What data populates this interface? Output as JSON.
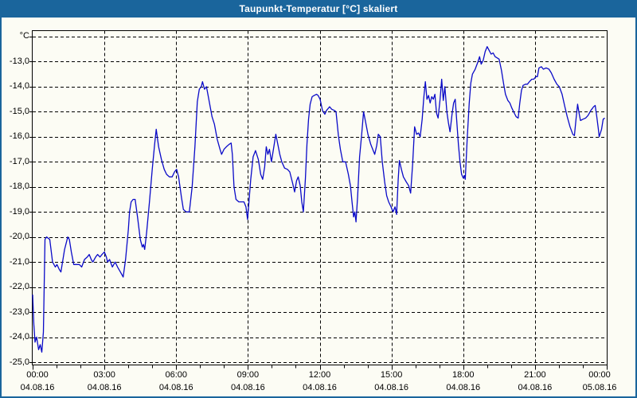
{
  "window": {
    "title": "Taupunkt-Temperatur [°C] skaliert"
  },
  "colors": {
    "titlebar_bg": "#1a659c",
    "titlebar_text": "#ffffff",
    "frame": "#1a659c",
    "background": "#fcfcf4",
    "grid": "#000000",
    "axis_text": "#000000",
    "line": "#0a0ac8"
  },
  "chart_data": {
    "type": "line",
    "title": "Taupunkt-Temperatur [°C] skaliert",
    "grid": true,
    "legend": false,
    "ylabel": "°C",
    "ylim": [
      -25,
      -12
    ],
    "y_axis": {
      "unit_label": "°C",
      "tick_step": 1,
      "tick_labels": [
        "-13,0",
        "-14,0",
        "-15,0",
        "-16,0",
        "-17,0",
        "-18,0",
        "-19,0",
        "-20,0",
        "-21,0",
        "-22,0",
        "-23,0",
        "-24,0",
        "-25,0"
      ],
      "tick_values": [
        -13,
        -14,
        -15,
        -16,
        -17,
        -18,
        -19,
        -20,
        -21,
        -22,
        -23,
        -24,
        -25
      ]
    },
    "x_axis": {
      "unit": "time",
      "minor_tick_hours": 1,
      "major_ticks": [
        {
          "hour": 0,
          "time": "00:00",
          "date": "04.08.16"
        },
        {
          "hour": 3,
          "time": "03:00",
          "date": "04.08.16"
        },
        {
          "hour": 6,
          "time": "06:00",
          "date": "04.08.16"
        },
        {
          "hour": 9,
          "time": "09:00",
          "date": "04.08.16"
        },
        {
          "hour": 12,
          "time": "12:00",
          "date": "04.08.16"
        },
        {
          "hour": 15,
          "time": "15:00",
          "date": "04.08.16"
        },
        {
          "hour": 18,
          "time": "18:00",
          "date": "04.08.16"
        },
        {
          "hour": 21,
          "time": "21:00",
          "date": "04.08.16"
        },
        {
          "hour": 24,
          "time": "00:00",
          "date": "05.08.16"
        }
      ]
    },
    "series": [
      {
        "name": "Taupunkt-Temperatur",
        "color": "#0a0ac8",
        "points_min_degC": [
          [
            0,
            -22.3
          ],
          [
            3,
            -23.5
          ],
          [
            6,
            -24.2
          ],
          [
            10,
            -24.0
          ],
          [
            15,
            -24.5
          ],
          [
            19,
            -24.3
          ],
          [
            23,
            -24.6
          ],
          [
            27,
            -23.8
          ],
          [
            31,
            -20.1
          ],
          [
            35,
            -20.0
          ],
          [
            43,
            -20.1
          ],
          [
            50,
            -21.0
          ],
          [
            57,
            -21.2
          ],
          [
            61,
            -21.1
          ],
          [
            67,
            -21.3
          ],
          [
            71,
            -21.4
          ],
          [
            80,
            -20.5
          ],
          [
            88,
            -20.0
          ],
          [
            92,
            -20.1
          ],
          [
            97,
            -20.6
          ],
          [
            103,
            -21.1
          ],
          [
            110,
            -21.1
          ],
          [
            117,
            -21.1
          ],
          [
            123,
            -21.2
          ],
          [
            130,
            -20.9
          ],
          [
            137,
            -20.8
          ],
          [
            142,
            -20.7
          ],
          [
            147,
            -20.9
          ],
          [
            151,
            -21.0
          ],
          [
            158,
            -20.8
          ],
          [
            163,
            -20.7
          ],
          [
            169,
            -20.8
          ],
          [
            174,
            -20.7
          ],
          [
            180,
            -20.6
          ],
          [
            185,
            -20.8
          ],
          [
            188,
            -21.0
          ],
          [
            193,
            -20.9
          ],
          [
            200,
            -21.2
          ],
          [
            207,
            -21.0
          ],
          [
            213,
            -21.2
          ],
          [
            220,
            -21.4
          ],
          [
            227,
            -21.6
          ],
          [
            233,
            -20.9
          ],
          [
            240,
            -19.7
          ],
          [
            243,
            -19.0
          ],
          [
            247,
            -18.6
          ],
          [
            252,
            -18.5
          ],
          [
            257,
            -18.5
          ],
          [
            263,
            -19.2
          ],
          [
            270,
            -20.1
          ],
          [
            275,
            -20.4
          ],
          [
            278,
            -20.3
          ],
          [
            281,
            -20.5
          ],
          [
            286,
            -19.8
          ],
          [
            293,
            -18.6
          ],
          [
            300,
            -17.3
          ],
          [
            306,
            -16.3
          ],
          [
            310,
            -15.7
          ],
          [
            316,
            -16.4
          ],
          [
            323,
            -16.9
          ],
          [
            330,
            -17.3
          ],
          [
            336,
            -17.5
          ],
          [
            343,
            -17.6
          ],
          [
            350,
            -17.6
          ],
          [
            356,
            -17.4
          ],
          [
            361,
            -17.3
          ],
          [
            366,
            -17.6
          ],
          [
            373,
            -18.4
          ],
          [
            378,
            -18.9
          ],
          [
            385,
            -19.0
          ],
          [
            393,
            -19.0
          ],
          [
            400,
            -18.0
          ],
          [
            407,
            -16.4
          ],
          [
            413,
            -14.6
          ],
          [
            418,
            -14.1
          ],
          [
            423,
            -14.0
          ],
          [
            426,
            -13.8
          ],
          [
            431,
            -14.1
          ],
          [
            436,
            -14.0
          ],
          [
            443,
            -14.6
          ],
          [
            450,
            -15.2
          ],
          [
            456,
            -15.5
          ],
          [
            463,
            -16.1
          ],
          [
            470,
            -16.5
          ],
          [
            474,
            -16.7
          ],
          [
            480,
            -16.5
          ],
          [
            486,
            -16.4
          ],
          [
            493,
            -16.3
          ],
          [
            498,
            -16.25
          ],
          [
            501,
            -16.7
          ],
          [
            505,
            -18.0
          ],
          [
            510,
            -18.5
          ],
          [
            517,
            -18.6
          ],
          [
            525,
            -18.6
          ],
          [
            530,
            -18.6
          ],
          [
            535,
            -18.8
          ],
          [
            539,
            -19.3
          ],
          [
            547,
            -17.7
          ],
          [
            553,
            -16.8
          ],
          [
            559,
            -16.55
          ],
          [
            566,
            -16.9
          ],
          [
            572,
            -17.5
          ],
          [
            577,
            -17.7
          ],
          [
            582,
            -17.2
          ],
          [
            586,
            -16.4
          ],
          [
            590,
            -16.7
          ],
          [
            594,
            -16.5
          ],
          [
            599,
            -17.0
          ],
          [
            605,
            -16.4
          ],
          [
            610,
            -15.9
          ],
          [
            615,
            -16.3
          ],
          [
            620,
            -16.7
          ],
          [
            625,
            -17.0
          ],
          [
            632,
            -17.25
          ],
          [
            639,
            -17.3
          ],
          [
            645,
            -17.4
          ],
          [
            652,
            -17.85
          ],
          [
            657,
            -18.2
          ],
          [
            662,
            -17.75
          ],
          [
            666,
            -17.6
          ],
          [
            671,
            -17.95
          ],
          [
            675,
            -18.6
          ],
          [
            679,
            -19.0
          ],
          [
            684,
            -17.7
          ],
          [
            688,
            -16.3
          ],
          [
            692,
            -15.3
          ],
          [
            696,
            -14.7
          ],
          [
            701,
            -14.4
          ],
          [
            706,
            -14.35
          ],
          [
            712,
            -14.3
          ],
          [
            716,
            -14.35
          ],
          [
            721,
            -14.5
          ],
          [
            727,
            -14.95
          ],
          [
            733,
            -15.1
          ],
          [
            737,
            -14.95
          ],
          [
            745,
            -14.8
          ],
          [
            750,
            -14.9
          ],
          [
            757,
            -14.95
          ],
          [
            761,
            -15.0
          ],
          [
            767,
            -15.95
          ],
          [
            772,
            -16.5
          ],
          [
            778,
            -17.0
          ],
          [
            785,
            -17.0
          ],
          [
            792,
            -17.5
          ],
          [
            797,
            -17.95
          ],
          [
            801,
            -18.6
          ],
          [
            805,
            -19.2
          ],
          [
            808,
            -19.0
          ],
          [
            811,
            -19.4
          ],
          [
            815,
            -18.4
          ],
          [
            820,
            -16.8
          ],
          [
            825,
            -15.95
          ],
          [
            830,
            -15.0
          ],
          [
            835,
            -15.4
          ],
          [
            841,
            -15.9
          ],
          [
            848,
            -16.3
          ],
          [
            853,
            -16.5
          ],
          [
            858,
            -16.7
          ],
          [
            863,
            -16.35
          ],
          [
            867,
            -15.9
          ],
          [
            872,
            -16.0
          ],
          [
            877,
            -17.0
          ],
          [
            883,
            -17.8
          ],
          [
            888,
            -18.35
          ],
          [
            893,
            -18.6
          ],
          [
            899,
            -18.8
          ],
          [
            904,
            -19.0
          ],
          [
            909,
            -18.8
          ],
          [
            913,
            -19.1
          ],
          [
            917,
            -17.7
          ],
          [
            920,
            -16.95
          ],
          [
            925,
            -17.3
          ],
          [
            930,
            -17.6
          ],
          [
            937,
            -17.8
          ],
          [
            943,
            -17.95
          ],
          [
            948,
            -18.25
          ],
          [
            953,
            -17.1
          ],
          [
            958,
            -15.6
          ],
          [
            963,
            -15.9
          ],
          [
            968,
            -15.85
          ],
          [
            972,
            -16.0
          ],
          [
            977,
            -15.3
          ],
          [
            981,
            -14.45
          ],
          [
            985,
            -13.8
          ],
          [
            989,
            -14.5
          ],
          [
            993,
            -14.35
          ],
          [
            997,
            -14.65
          ],
          [
            1001,
            -14.4
          ],
          [
            1005,
            -14.5
          ],
          [
            1009,
            -14.3
          ],
          [
            1013,
            -15.05
          ],
          [
            1017,
            -15.25
          ],
          [
            1022,
            -14.5
          ],
          [
            1026,
            -13.7
          ],
          [
            1030,
            -14.55
          ],
          [
            1034,
            -14.0
          ],
          [
            1039,
            -15.0
          ],
          [
            1043,
            -15.45
          ],
          [
            1047,
            -15.8
          ],
          [
            1052,
            -15.1
          ],
          [
            1056,
            -14.65
          ],
          [
            1060,
            -14.5
          ],
          [
            1064,
            -15.4
          ],
          [
            1068,
            -16.3
          ],
          [
            1072,
            -17.0
          ],
          [
            1076,
            -17.5
          ],
          [
            1080,
            -17.65
          ],
          [
            1083,
            -17.55
          ],
          [
            1085,
            -17.7
          ],
          [
            1090,
            -16.05
          ],
          [
            1095,
            -14.65
          ],
          [
            1099,
            -13.85
          ],
          [
            1103,
            -13.5
          ],
          [
            1110,
            -13.3
          ],
          [
            1117,
            -13.0
          ],
          [
            1121,
            -12.8
          ],
          [
            1125,
            -13.1
          ],
          [
            1130,
            -12.95
          ],
          [
            1135,
            -12.6
          ],
          [
            1140,
            -12.4
          ],
          [
            1145,
            -12.55
          ],
          [
            1150,
            -12.7
          ],
          [
            1155,
            -12.65
          ],
          [
            1160,
            -12.8
          ],
          [
            1165,
            -12.85
          ],
          [
            1170,
            -12.9
          ],
          [
            1176,
            -13.35
          ],
          [
            1181,
            -13.85
          ],
          [
            1186,
            -14.3
          ],
          [
            1192,
            -14.55
          ],
          [
            1197,
            -14.65
          ],
          [
            1202,
            -14.85
          ],
          [
            1208,
            -15.05
          ],
          [
            1213,
            -15.2
          ],
          [
            1218,
            -15.25
          ],
          [
            1222,
            -14.65
          ],
          [
            1226,
            -14.15
          ],
          [
            1230,
            -13.95
          ],
          [
            1236,
            -13.9
          ],
          [
            1241,
            -13.9
          ],
          [
            1246,
            -13.8
          ],
          [
            1252,
            -13.7
          ],
          [
            1257,
            -13.7
          ],
          [
            1262,
            -13.6
          ],
          [
            1266,
            -13.6
          ],
          [
            1270,
            -13.25
          ],
          [
            1276,
            -13.2
          ],
          [
            1281,
            -13.3
          ],
          [
            1288,
            -13.25
          ],
          [
            1295,
            -13.3
          ],
          [
            1301,
            -13.45
          ],
          [
            1308,
            -13.7
          ],
          [
            1315,
            -13.9
          ],
          [
            1321,
            -14.0
          ],
          [
            1328,
            -14.3
          ],
          [
            1335,
            -14.8
          ],
          [
            1341,
            -15.2
          ],
          [
            1348,
            -15.6
          ],
          [
            1355,
            -15.9
          ],
          [
            1359,
            -15.95
          ],
          [
            1363,
            -15.3
          ],
          [
            1367,
            -14.7
          ],
          [
            1371,
            -15.1
          ],
          [
            1374,
            -15.35
          ],
          [
            1380,
            -15.3
          ],
          [
            1387,
            -15.25
          ],
          [
            1393,
            -15.15
          ],
          [
            1400,
            -14.95
          ],
          [
            1407,
            -14.8
          ],
          [
            1411,
            -14.75
          ],
          [
            1415,
            -15.2
          ],
          [
            1419,
            -15.7
          ],
          [
            1421,
            -16.0
          ],
          [
            1427,
            -15.7
          ],
          [
            1431,
            -15.3
          ],
          [
            1435,
            -15.25
          ]
        ]
      }
    ]
  }
}
